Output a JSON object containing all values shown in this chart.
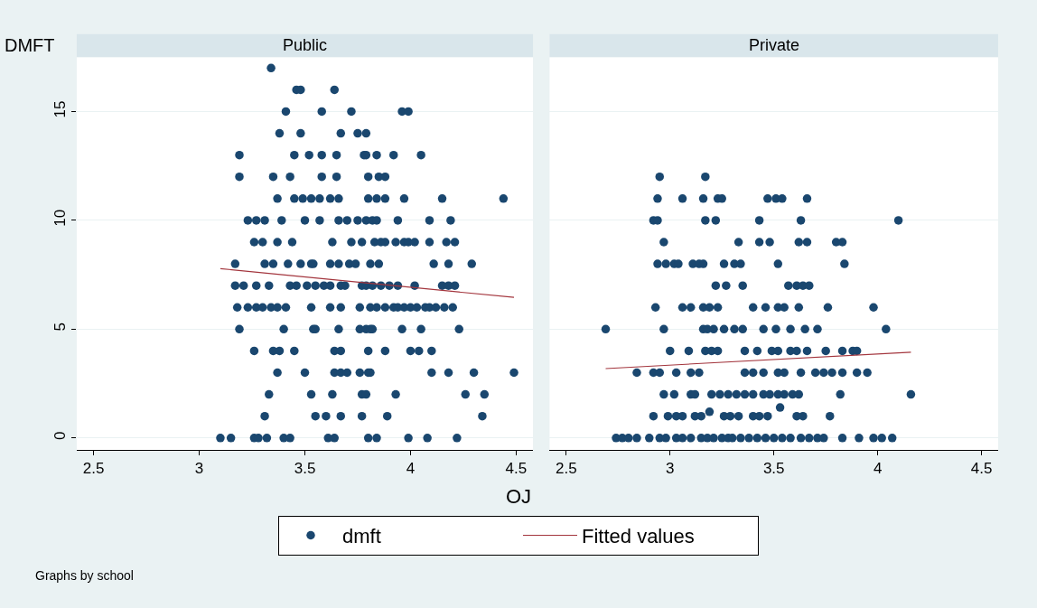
{
  "chart_data": [
    {
      "type": "scatter",
      "title": "Public",
      "ylabel": "DMFT",
      "xlabel": "OJ",
      "annotations": [
        "Graphs by school"
      ],
      "xlim": [
        2.42,
        4.58
      ],
      "xticks": [
        2.5,
        3,
        3.5,
        4,
        4.5
      ],
      "ylim": [
        -0.55,
        17.5
      ],
      "yticks": [
        0,
        5,
        10,
        15
      ],
      "grid": "y",
      "legend": "bottom",
      "series": [
        {
          "name": "dmft",
          "marker": "circle",
          "color": "#1a476f",
          "x": [
            3.34,
            3.46,
            3.48,
            3.64,
            3.41,
            3.58,
            3.72,
            3.96,
            3.99,
            3.38,
            3.48,
            3.67,
            3.75,
            3.79,
            3.19,
            3.45,
            3.52,
            3.58,
            3.65,
            3.78,
            3.79,
            3.84,
            3.92,
            4.05,
            3.19,
            3.35,
            3.43,
            3.58,
            3.65,
            3.8,
            3.85,
            3.88,
            3.37,
            3.45,
            3.49,
            3.53,
            3.57,
            3.62,
            3.66,
            3.8,
            3.84,
            3.88,
            3.97,
            4.15,
            4.44,
            3.23,
            3.27,
            3.31,
            3.39,
            3.5,
            3.57,
            3.66,
            3.7,
            3.75,
            3.79,
            3.82,
            3.84,
            3.94,
            4.09,
            4.19,
            3.26,
            3.3,
            3.37,
            3.44,
            3.63,
            3.72,
            3.77,
            3.83,
            3.86,
            3.88,
            3.93,
            3.97,
            3.99,
            4.02,
            4.09,
            4.17,
            4.21,
            3.17,
            3.31,
            3.35,
            3.42,
            3.48,
            3.53,
            3.54,
            3.62,
            3.66,
            3.71,
            3.74,
            3.81,
            3.85,
            4.11,
            4.18,
            4.29,
            3.17,
            3.21,
            3.27,
            3.33,
            3.43,
            3.46,
            3.51,
            3.55,
            3.59,
            3.62,
            3.67,
            3.69,
            3.77,
            3.79,
            3.82,
            3.86,
            3.9,
            3.94,
            4.02,
            4.15,
            4.18,
            4.21,
            3.18,
            3.23,
            3.27,
            3.3,
            3.34,
            3.37,
            3.41,
            3.53,
            3.62,
            3.67,
            3.76,
            3.81,
            3.84,
            3.88,
            3.92,
            3.94,
            3.97,
            4.0,
            4.03,
            4.07,
            4.09,
            4.12,
            4.16,
            4.2,
            3.19,
            3.4,
            3.54,
            3.55,
            3.66,
            3.76,
            3.79,
            3.81,
            3.82,
            3.96,
            4.05,
            4.23,
            3.26,
            3.35,
            3.38,
            3.45,
            3.64,
            3.67,
            3.8,
            3.88,
            4.0,
            4.04,
            4.1,
            3.37,
            3.5,
            3.64,
            3.67,
            3.7,
            3.76,
            3.8,
            3.81,
            4.1,
            4.18,
            4.3,
            4.49,
            3.33,
            3.53,
            3.63,
            3.77,
            3.79,
            3.93,
            4.26,
            4.35,
            3.31,
            3.55,
            3.6,
            3.67,
            3.77,
            3.89,
            4.34,
            3.1,
            3.15,
            3.26,
            3.28,
            3.32,
            3.4,
            3.43,
            3.61,
            3.64,
            3.8,
            3.84,
            3.99,
            4.08,
            4.22
          ],
          "values": [
            17,
            16,
            16,
            16,
            15,
            15,
            15,
            15,
            15,
            14,
            14,
            14,
            14,
            14,
            13,
            13,
            13,
            13,
            13,
            13,
            13,
            13,
            13,
            13,
            12,
            12,
            12,
            12,
            12,
            12,
            12,
            12,
            11,
            11,
            11,
            11,
            11,
            11,
            11,
            11,
            11,
            11,
            11,
            11,
            11,
            10,
            10,
            10,
            10,
            10,
            10,
            10,
            10,
            10,
            10,
            10,
            10,
            10,
            10,
            10,
            9,
            9,
            9,
            9,
            9,
            9,
            9,
            9,
            9,
            9,
            9,
            9,
            9,
            9,
            9,
            9,
            9,
            8,
            8,
            8,
            8,
            8,
            8,
            8,
            8,
            8,
            8,
            8,
            8,
            8,
            8,
            8,
            8,
            7,
            7,
            7,
            7,
            7,
            7,
            7,
            7,
            7,
            7,
            7,
            7,
            7,
            7,
            7,
            7,
            7,
            7,
            7,
            7,
            7,
            7,
            6,
            6,
            6,
            6,
            6,
            6,
            6,
            6,
            6,
            6,
            6,
            6,
            6,
            6,
            6,
            6,
            6,
            6,
            6,
            6,
            6,
            6,
            6,
            6,
            5,
            5,
            5,
            5,
            5,
            5,
            5,
            5,
            5,
            5,
            5,
            5,
            4,
            4,
            4,
            4,
            4,
            4,
            4,
            4,
            4,
            4,
            4,
            3,
            3,
            3,
            3,
            3,
            3,
            3,
            3,
            3,
            3,
            3,
            3,
            2,
            2,
            2,
            2,
            2,
            2,
            2,
            2,
            1,
            1,
            1,
            1,
            1,
            1,
            1,
            0,
            0,
            0,
            0,
            0,
            0,
            0,
            0,
            0,
            0,
            0,
            0,
            0,
            0
          ]
        },
        {
          "name": "Fitted values",
          "type": "line",
          "color": "#a3353d",
          "x": [
            3.1,
            4.49
          ],
          "values": [
            7.78,
            6.46
          ]
        }
      ]
    },
    {
      "type": "scatter",
      "title": "Private",
      "xlim": [
        2.42,
        4.58
      ],
      "xticks": [
        2.5,
        3,
        3.5,
        4,
        4.5
      ],
      "ylim": [
        -0.55,
        17.5
      ],
      "yticks": [
        0,
        5,
        10,
        15
      ],
      "grid": "y",
      "tick_labels": "x",
      "series": [
        {
          "marker": "circle",
          "color": "#1a476f",
          "x": [
            2.95,
            3.17,
            2.94,
            3.06,
            3.16,
            3.23,
            3.25,
            3.47,
            3.51,
            3.54,
            3.66,
            2.92,
            2.94,
            3.17,
            3.22,
            3.43,
            3.63,
            4.1,
            2.97,
            3.33,
            3.43,
            3.48,
            3.62,
            3.66,
            3.8,
            3.83,
            2.94,
            2.98,
            3.02,
            3.04,
            3.11,
            3.14,
            3.16,
            3.26,
            3.31,
            3.34,
            3.52,
            3.84,
            3.22,
            3.27,
            3.35,
            3.57,
            3.61,
            3.64,
            3.67,
            2.93,
            3.06,
            3.1,
            3.16,
            3.19,
            3.23,
            3.4,
            3.46,
            3.52,
            3.55,
            3.62,
            3.76,
            3.98,
            2.69,
            2.97,
            3.16,
            3.18,
            3.21,
            3.26,
            3.31,
            3.35,
            3.45,
            3.51,
            3.58,
            3.65,
            3.71,
            4.04,
            3.0,
            3.09,
            3.17,
            3.2,
            3.23,
            3.36,
            3.42,
            3.49,
            3.52,
            3.58,
            3.61,
            3.66,
            3.75,
            3.83,
            3.88,
            3.9,
            2.84,
            2.92,
            2.95,
            3.03,
            3.1,
            3.14,
            3.36,
            3.4,
            3.45,
            3.52,
            3.55,
            3.63,
            3.7,
            3.74,
            3.78,
            3.83,
            3.9,
            3.95,
            2.97,
            3.02,
            3.1,
            3.12,
            3.2,
            3.24,
            3.28,
            3.32,
            3.36,
            3.4,
            3.45,
            3.48,
            3.52,
            3.55,
            3.59,
            3.62,
            3.82,
            4.16,
            3.19,
            3.53,
            2.92,
            2.99,
            3.03,
            3.06,
            3.12,
            3.15,
            3.26,
            3.29,
            3.33,
            3.4,
            3.43,
            3.47,
            3.61,
            3.64,
            3.77,
            2.74,
            2.77,
            2.8,
            2.84,
            2.9,
            2.95,
            2.98,
            3.03,
            3.06,
            3.1,
            3.15,
            3.18,
            3.21,
            3.25,
            3.28,
            3.3,
            3.34,
            3.38,
            3.42,
            3.46,
            3.5,
            3.54,
            3.58,
            3.63,
            3.67,
            3.71,
            3.74,
            3.83,
            3.91,
            3.98,
            4.02,
            4.07
          ],
          "values": [
            12,
            12,
            11,
            11,
            11,
            11,
            11,
            11,
            11,
            11,
            11,
            10,
            10,
            10,
            10,
            10,
            10,
            10,
            9,
            9,
            9,
            9,
            9,
            9,
            9,
            9,
            8,
            8,
            8,
            8,
            8,
            8,
            8,
            8,
            8,
            8,
            8,
            8,
            7,
            7,
            7,
            7,
            7,
            7,
            7,
            6,
            6,
            6,
            6,
            6,
            6,
            6,
            6,
            6,
            6,
            6,
            6,
            6,
            5,
            5,
            5,
            5,
            5,
            5,
            5,
            5,
            5,
            5,
            5,
            5,
            5,
            5,
            4,
            4,
            4,
            4,
            4,
            4,
            4,
            4,
            4,
            4,
            4,
            4,
            4,
            4,
            4,
            4,
            3,
            3,
            3,
            3,
            3,
            3,
            3,
            3,
            3,
            3,
            3,
            3,
            3,
            3,
            3,
            3,
            3,
            3,
            2,
            2,
            2,
            2,
            2,
            2,
            2,
            2,
            2,
            2,
            2,
            2,
            2,
            2,
            2,
            2,
            2,
            2,
            1.2,
            1.4,
            1,
            1,
            1,
            1,
            1,
            1,
            1,
            1,
            1,
            1,
            1,
            1,
            1,
            1,
            1,
            0,
            0,
            0,
            0,
            0,
            0,
            0,
            0,
            0,
            0,
            0,
            0,
            0,
            0,
            0,
            0,
            0,
            0,
            0,
            0,
            0,
            0,
            0,
            0,
            0,
            0,
            0,
            0,
            0,
            0,
            0,
            0
          ]
        },
        {
          "type": "line",
          "color": "#a3353d",
          "x": [
            2.69,
            4.16
          ],
          "values": [
            3.19,
            3.94
          ]
        }
      ]
    }
  ]
}
